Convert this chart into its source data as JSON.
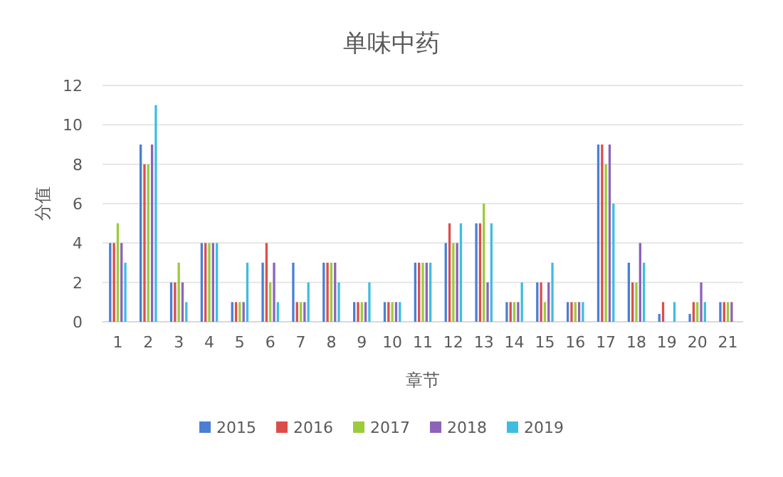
{
  "chart_data": {
    "type": "bar",
    "title": "单味中药",
    "xlabel": "章节",
    "ylabel": "分值",
    "categories": [
      "1",
      "2",
      "3",
      "4",
      "5",
      "6",
      "7",
      "8",
      "9",
      "10",
      "11",
      "12",
      "13",
      "14",
      "15",
      "16",
      "17",
      "18",
      "19",
      "20",
      "21"
    ],
    "series": [
      {
        "name": "2015",
        "color": "#4a7fd4",
        "values": [
          4,
          9,
          2,
          4,
          1,
          3,
          3,
          3,
          1,
          1,
          3,
          4,
          5,
          1,
          2,
          1,
          9,
          3,
          0.4,
          0.4,
          1
        ]
      },
      {
        "name": "2016",
        "color": "#dc4e4a",
        "values": [
          4,
          8,
          2,
          4,
          1,
          4,
          1,
          3,
          1,
          1,
          3,
          5,
          5,
          1,
          2,
          1,
          9,
          2,
          1,
          1,
          1
        ]
      },
      {
        "name": "2017",
        "color": "#9ccb3c",
        "values": [
          5,
          8,
          3,
          4,
          1,
          2,
          1,
          3,
          1,
          1,
          3,
          4,
          6,
          1,
          1,
          1,
          8,
          2,
          null,
          1,
          1
        ]
      },
      {
        "name": "2018",
        "color": "#8d62b8",
        "values": [
          4,
          9,
          2,
          4,
          1,
          3,
          1,
          3,
          1,
          1,
          3,
          4,
          2,
          1,
          2,
          1,
          9,
          4,
          null,
          2,
          1
        ]
      },
      {
        "name": "2019",
        "color": "#3ebde0",
        "values": [
          3,
          11,
          1,
          4,
          3,
          1,
          2,
          2,
          2,
          1,
          3,
          5,
          5,
          2,
          3,
          1,
          6,
          3,
          1,
          1,
          null
        ]
      }
    ],
    "ylim": [
      0,
      12
    ],
    "yticks": [
      0,
      2,
      4,
      6,
      8,
      10,
      12
    ],
    "grid": "y",
    "legend": "bottom"
  }
}
